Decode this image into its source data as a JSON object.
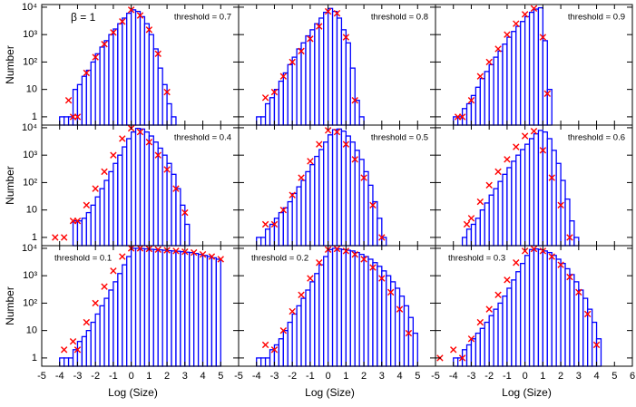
{
  "chart_data": [
    {
      "type": "histogram",
      "title": "threshold = 0.7",
      "title_loc": "right",
      "annotation": "β = 1",
      "ylabel": "Number",
      "xlim": [
        -5,
        6
      ],
      "ylim": [
        0.5,
        12500
      ],
      "yscale": "log",
      "color": "#0000ff",
      "yticks": [
        1,
        10,
        {
          "value": 100,
          "label": "10²"
        },
        {
          "value": 1000,
          "label": "10³"
        },
        {
          "value": 10000,
          "label": "10⁴"
        }
      ],
      "bins": [
        -4,
        -3.75,
        -3.5,
        -3.25,
        -3,
        -2.75,
        -2.5,
        -2.25,
        -2,
        -1.75,
        -1.5,
        -1.25,
        -1,
        -0.75,
        -0.5,
        -0.25,
        0,
        0.25,
        0.5,
        0.75,
        1,
        1.25,
        1.5,
        1.75,
        2,
        2.25,
        2.5
      ],
      "values": [
        1,
        1,
        1,
        10,
        15,
        30,
        50,
        100,
        200,
        350,
        600,
        1000,
        1600,
        2500,
        4000,
        6000,
        8000,
        7000,
        4500,
        2500,
        1000,
        300,
        60,
        15,
        3,
        1
      ],
      "markers": {
        "color": "#ff0000",
        "x": [
          -3.5,
          -3.25,
          -3,
          -2.5,
          -2,
          -1.5,
          -1,
          -0.5,
          0,
          0.5,
          1,
          1.5,
          2
        ],
        "y": [
          4,
          1,
          1,
          40,
          150,
          450,
          1200,
          3000,
          8000,
          5000,
          1500,
          200,
          8
        ]
      }
    },
    {
      "type": "histogram",
      "title": "threshold = 0.8",
      "title_loc": "right",
      "xlim": [
        -5,
        6
      ],
      "ylim": [
        0.5,
        12500
      ],
      "yscale": "log",
      "color": "#0000ff",
      "bins": [
        -4,
        -3.75,
        -3.5,
        -3.25,
        -3,
        -2.75,
        -2.5,
        -2.25,
        -2,
        -1.75,
        -1.5,
        -1.25,
        -1,
        -0.75,
        -0.5,
        -0.25,
        0,
        0.25,
        0.5,
        0.75,
        1,
        1.25,
        1.5,
        1.75,
        2
      ],
      "values": [
        1,
        1,
        3,
        5,
        10,
        20,
        40,
        80,
        150,
        300,
        500,
        900,
        1500,
        2500,
        4000,
        6500,
        9000,
        7000,
        4000,
        1500,
        500,
        60,
        4,
        1
      ],
      "markers": {
        "color": "#ff0000",
        "x": [
          -3.5,
          -3,
          -2.5,
          -2,
          -1.5,
          -1,
          -0.5,
          0,
          0.5,
          1,
          1.5
        ],
        "y": [
          5,
          8,
          30,
          100,
          250,
          700,
          2000,
          7000,
          6000,
          800,
          4
        ]
      }
    },
    {
      "type": "histogram",
      "title": "threshold = 0.9",
      "title_loc": "right",
      "xlim": [
        -5,
        6
      ],
      "ylim": [
        0.5,
        12500
      ],
      "yscale": "log",
      "color": "#0000ff",
      "bins": [
        -4,
        -3.75,
        -3.5,
        -3.25,
        -3,
        -2.75,
        -2.5,
        -2.25,
        -2,
        -1.75,
        -1.5,
        -1.25,
        -1,
        -0.75,
        -0.5,
        -0.25,
        0,
        0.25,
        0.5,
        0.75,
        1,
        1.25,
        1.5
      ],
      "values": [
        1,
        1,
        2,
        3,
        6,
        12,
        25,
        45,
        80,
        150,
        250,
        450,
        800,
        1300,
        2000,
        3000,
        4500,
        6500,
        8500,
        9500,
        600,
        10
      ],
      "markers": {
        "color": "#ff0000",
        "x": [
          -3.75,
          -3.5,
          -3,
          -2.5,
          -2,
          -1.5,
          -1,
          -0.5,
          0,
          0.5,
          1,
          1.25
        ],
        "y": [
          1,
          1,
          4,
          30,
          100,
          300,
          1000,
          2500,
          5500,
          9000,
          800,
          7
        ]
      }
    },
    {
      "type": "histogram",
      "title": "threshold = 0.4",
      "title_loc": "right",
      "ylabel": "Number",
      "xlim": [
        -5,
        6
      ],
      "ylim": [
        0.5,
        12500
      ],
      "yscale": "log",
      "color": "#0000ff",
      "yticks": [
        1,
        10,
        {
          "value": 100,
          "label": "10²"
        },
        {
          "value": 1000,
          "label": "10³"
        },
        {
          "value": 10000,
          "label": "10⁴"
        }
      ],
      "bins": [
        -3.25,
        -3,
        -2.75,
        -2.5,
        -2.25,
        -2,
        -1.75,
        -1.5,
        -1.25,
        -1,
        -0.75,
        -0.5,
        -0.25,
        0,
        0.25,
        0.5,
        0.75,
        1,
        1.25,
        1.5,
        1.75,
        2,
        2.25,
        2.5,
        2.75,
        3,
        3.25
      ],
      "values": [
        4,
        4,
        5,
        8,
        15,
        30,
        60,
        120,
        250,
        500,
        1000,
        2000,
        4000,
        7000,
        9500,
        9000,
        7000,
        5000,
        3000,
        1800,
        1000,
        500,
        200,
        60,
        15,
        3
      ],
      "markers": {
        "color": "#ff0000",
        "x": [
          -4.25,
          -3.75,
          -3.25,
          -3,
          -2.5,
          -2,
          -1.5,
          -1,
          -0.5,
          0,
          0.5,
          1,
          1.5,
          2,
          2.5,
          3
        ],
        "y": [
          1,
          1,
          4,
          4,
          15,
          60,
          250,
          1000,
          4000,
          9500,
          7000,
          3000,
          1000,
          300,
          60,
          8
        ]
      }
    },
    {
      "type": "histogram",
      "title": "threshold = 0.5",
      "title_loc": "right",
      "xlim": [
        -5,
        6
      ],
      "ylim": [
        0.5,
        12500
      ],
      "yscale": "log",
      "color": "#0000ff",
      "bins": [
        -4,
        -3.75,
        -3.5,
        -3.25,
        -3,
        -2.75,
        -2.5,
        -2.25,
        -2,
        -1.75,
        -1.5,
        -1.25,
        -1,
        -0.75,
        -0.5,
        -0.25,
        0,
        0.25,
        0.5,
        0.75,
        1,
        1.25,
        1.5,
        1.75,
        2,
        2.25,
        2.5,
        2.75,
        3,
        3.25
      ],
      "values": [
        1,
        1,
        2,
        3,
        5,
        8,
        12,
        20,
        40,
        70,
        120,
        250,
        450,
        900,
        1600,
        3000,
        5500,
        8500,
        9000,
        7500,
        5000,
        3000,
        1500,
        700,
        250,
        80,
        20,
        5,
        1
      ],
      "markers": {
        "color": "#ff0000",
        "x": [
          -3.5,
          -3,
          -2.5,
          -2,
          -1.5,
          -1,
          -0.5,
          0,
          0.5,
          1,
          1.5,
          2,
          2.5,
          3
        ],
        "y": [
          3,
          3,
          10,
          35,
          150,
          600,
          2500,
          8000,
          7000,
          2500,
          700,
          150,
          15,
          1
        ]
      }
    },
    {
      "type": "histogram",
      "title": "threshold = 0.6",
      "title_loc": "right",
      "xlim": [
        -5,
        6
      ],
      "ylim": [
        0.5,
        12500
      ],
      "yscale": "log",
      "color": "#0000ff",
      "bins": [
        -3.5,
        -3.25,
        -3,
        -2.75,
        -2.5,
        -2.25,
        -2,
        -1.75,
        -1.5,
        -1.25,
        -1,
        -0.75,
        -0.5,
        -0.25,
        0,
        0.25,
        0.5,
        0.75,
        1,
        1.25,
        1.5,
        1.75,
        2,
        2.25,
        2.5,
        2.75,
        3
      ],
      "values": [
        1,
        2,
        3,
        5,
        10,
        18,
        35,
        60,
        110,
        200,
        350,
        600,
        1000,
        1600,
        2500,
        4000,
        6000,
        8000,
        7000,
        4000,
        1500,
        500,
        120,
        25,
        4,
        1
      ],
      "markers": {
        "color": "#ff0000",
        "x": [
          -3.25,
          -3,
          -2.5,
          -2,
          -1.5,
          -1,
          -0.5,
          0,
          0.5,
          1,
          1.5,
          2,
          2.5
        ],
        "y": [
          3,
          5,
          20,
          80,
          250,
          700,
          2000,
          5000,
          7500,
          1500,
          150,
          15,
          1
        ]
      }
    },
    {
      "type": "histogram",
      "title": "threshold = 0.1",
      "title_loc": "left",
      "ylabel": "Number",
      "xlabel": "Log (Size)",
      "xlim": [
        -5,
        6
      ],
      "ylim": [
        0.5,
        12500
      ],
      "yscale": "log",
      "color": "#0000ff",
      "yticks": [
        1,
        10,
        {
          "value": 100,
          "label": "10²"
        },
        {
          "value": 1000,
          "label": "10³"
        },
        {
          "value": 10000,
          "label": "10⁴"
        }
      ],
      "xticks": [
        -5,
        -4,
        -3,
        -2,
        -1,
        0,
        1,
        2,
        3,
        4,
        5
      ],
      "bins": [
        -4,
        -3.75,
        -3.5,
        -3.25,
        -3,
        -2.75,
        -2.5,
        -2.25,
        -2,
        -1.75,
        -1.5,
        -1.25,
        -1,
        -0.75,
        -0.5,
        -0.25,
        0,
        0.25,
        0.5,
        0.75,
        1,
        1.25,
        1.5,
        1.75,
        2,
        2.25,
        2.5,
        2.75,
        3,
        3.25,
        3.5,
        3.75,
        4,
        4.25,
        4.5,
        4.75,
        5
      ],
      "values": [
        1,
        1,
        1,
        2,
        4,
        6,
        10,
        20,
        40,
        80,
        150,
        300,
        600,
        1200,
        2500,
        5000,
        10000,
        10000,
        9800,
        9500,
        9200,
        9000,
        8800,
        8500,
        8200,
        8000,
        7800,
        7500,
        7200,
        7000,
        6500,
        6000,
        5500,
        5000,
        4500,
        4000
      ],
      "markers": {
        "color": "#ff0000",
        "x": [
          -3.75,
          -3.25,
          -3,
          -2.5,
          -2,
          -1.5,
          -1,
          -0.5,
          0,
          0.5,
          1,
          1.5,
          2,
          2.5,
          3,
          3.5,
          4,
          4.5,
          5
        ],
        "y": [
          2,
          4,
          2,
          20,
          100,
          400,
          1500,
          5000,
          10000,
          10000,
          9500,
          9000,
          8500,
          8000,
          7500,
          7000,
          6000,
          5000,
          4000
        ]
      }
    },
    {
      "type": "histogram",
      "title": "threshold = 0.2",
      "title_loc": "left",
      "xlabel": "Log (Size)",
      "xlim": [
        -5,
        6
      ],
      "ylim": [
        0.5,
        12500
      ],
      "yscale": "log",
      "color": "#0000ff",
      "xticks": [
        -5,
        -4,
        -3,
        -2,
        -1,
        0,
        1,
        2,
        3,
        4,
        5
      ],
      "bins": [
        -4,
        -3.75,
        -3.5,
        -3.25,
        -3,
        -2.75,
        -2.5,
        -2.25,
        -2,
        -1.75,
        -1.5,
        -1.25,
        -1,
        -0.75,
        -0.5,
        -0.25,
        0,
        0.25,
        0.5,
        0.75,
        1,
        1.25,
        1.5,
        1.75,
        2,
        2.25,
        2.5,
        2.75,
        3,
        3.25,
        3.5,
        3.75,
        4,
        4.25,
        4.5,
        4.75,
        5
      ],
      "values": [
        1,
        1,
        1,
        2,
        3,
        5,
        10,
        20,
        40,
        80,
        150,
        300,
        600,
        1200,
        2500,
        5000,
        9000,
        10000,
        9500,
        9000,
        8500,
        8000,
        7000,
        6000,
        5000,
        4000,
        3000,
        2200,
        1500,
        1000,
        600,
        350,
        180,
        80,
        30,
        8
      ],
      "markers": {
        "color": "#ff0000",
        "x": [
          -3.5,
          -3,
          -2.5,
          -2,
          -1.5,
          -1,
          -0.5,
          0,
          0.5,
          1,
          1.5,
          2,
          2.5,
          3,
          3.5,
          4,
          4.5
        ],
        "y": [
          3,
          2,
          10,
          50,
          200,
          800,
          3000,
          9000,
          9500,
          8000,
          6000,
          4000,
          2000,
          800,
          250,
          60,
          8
        ]
      }
    },
    {
      "type": "histogram",
      "title": "threshold = 0.3",
      "title_loc": "left",
      "xlabel": "Log (Size)",
      "xlim": [
        -5,
        6
      ],
      "ylim": [
        0.5,
        12500
      ],
      "yscale": "log",
      "color": "#0000ff",
      "xticks": [
        -5,
        -4,
        -3,
        -2,
        -1,
        0,
        1,
        2,
        3,
        4,
        5,
        6
      ],
      "bins": [
        -4,
        -3.75,
        -3.5,
        -3.25,
        -3,
        -2.75,
        -2.5,
        -2.25,
        -2,
        -1.75,
        -1.5,
        -1.25,
        -1,
        -0.75,
        -0.5,
        -0.25,
        0,
        0.25,
        0.5,
        0.75,
        1,
        1.25,
        1.5,
        1.75,
        2,
        2.25,
        2.5,
        2.75,
        3,
        3.25,
        3.5,
        3.75,
        4,
        4.25
      ],
      "values": [
        1,
        1,
        2,
        3,
        5,
        8,
        12,
        20,
        35,
        60,
        100,
        180,
        350,
        700,
        1400,
        2800,
        5500,
        9000,
        9500,
        9000,
        8000,
        7000,
        5500,
        4000,
        2800,
        1800,
        1100,
        600,
        300,
        150,
        60,
        20,
        5
      ],
      "markers": {
        "color": "#ff0000",
        "x": [
          -4.75,
          -4,
          -3.5,
          -3,
          -2.5,
          -2,
          -1.5,
          -1,
          -0.5,
          0,
          0.5,
          1,
          1.5,
          2,
          2.5,
          3,
          3.5,
          4
        ],
        "y": [
          1,
          2,
          1,
          5,
          20,
          60,
          200,
          700,
          3000,
          8000,
          9500,
          8000,
          5000,
          2500,
          900,
          250,
          40,
          3
        ]
      }
    }
  ]
}
